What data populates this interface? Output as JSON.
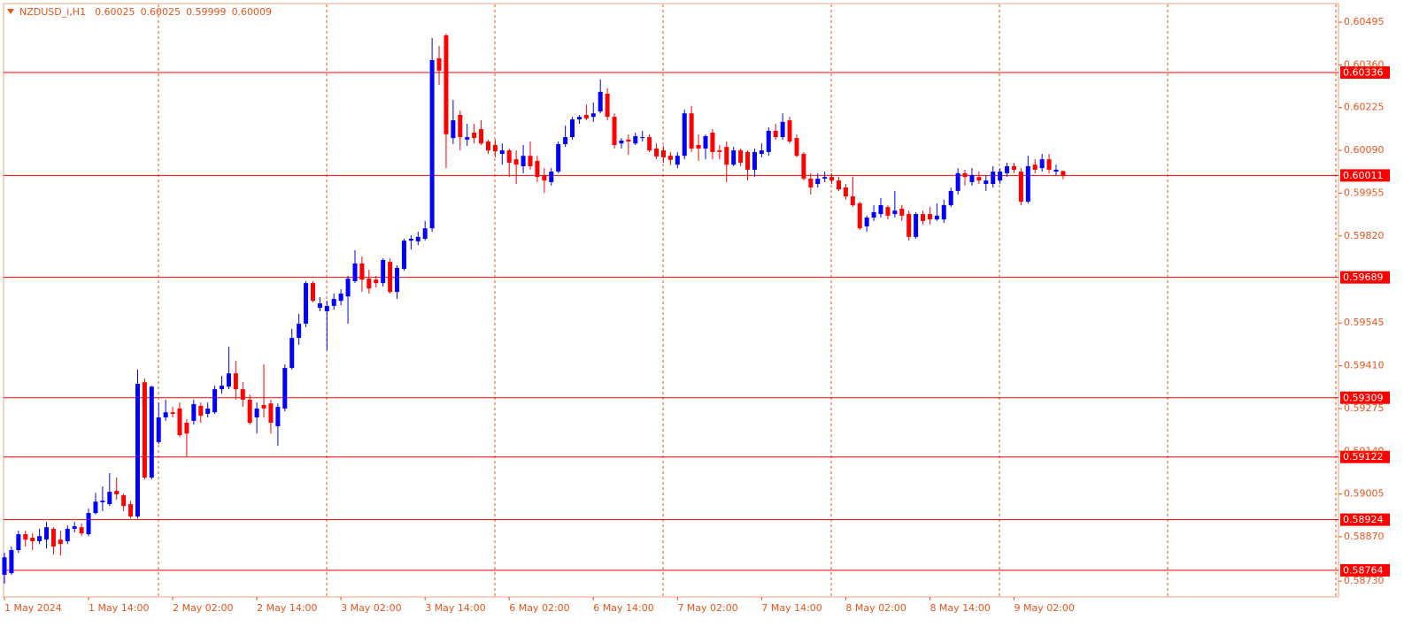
{
  "chart_data": {
    "type": "candlestick",
    "title": "NZDUSD_i,H1",
    "categories": [
      "1 May 2024",
      null,
      null,
      null,
      null,
      null,
      null,
      null,
      null,
      null,
      null,
      null,
      "1 May 14:00",
      null,
      null,
      null,
      null,
      null,
      null,
      null,
      null,
      null,
      null,
      null,
      "2 May 02:00",
      null,
      null,
      null,
      null,
      null,
      null,
      null,
      null,
      null,
      null,
      null,
      "2 May 14:00",
      null,
      null,
      null,
      null,
      null,
      null,
      null,
      null,
      null,
      null,
      null,
      "3 May 02:00",
      null,
      null,
      null,
      null,
      null,
      null,
      null,
      null,
      null,
      null,
      null,
      "3 May 14:00",
      null,
      null,
      null,
      null,
      null,
      null,
      null,
      null,
      null,
      null,
      null,
      "6 May 02:00",
      null,
      null,
      null,
      null,
      null,
      null,
      null,
      null,
      null,
      null,
      null,
      "6 May 14:00",
      null,
      null,
      null,
      null,
      null,
      null,
      null,
      null,
      null,
      null,
      null,
      "7 May 02:00",
      null,
      null,
      null,
      null,
      null,
      null,
      null,
      null,
      null,
      null,
      null,
      "7 May 14:00",
      null,
      null,
      null,
      null,
      null,
      null,
      null,
      null,
      null,
      null,
      null,
      "8 May 02:00",
      null,
      null,
      null,
      null,
      null,
      null,
      null,
      null,
      null,
      null,
      null,
      "8 May 14:00",
      null,
      null,
      null,
      null,
      null,
      null,
      null,
      null,
      null,
      null,
      null,
      "9 May 02:00",
      null,
      null,
      null,
      null,
      null,
      null,
      null
    ],
    "open": [
      0.5875,
      0.58755,
      0.58828,
      0.58878,
      0.58867,
      0.58856,
      0.58861,
      0.58895,
      0.58861,
      0.58856,
      0.58895,
      0.589,
      0.58878,
      0.58945,
      0.58979,
      0.58973,
      0.59015,
      0.59001,
      0.58973,
      0.58934,
      0.59358,
      0.59057,
      0.59169,
      0.59247,
      0.59263,
      0.59275,
      0.5923,
      0.59236,
      0.59283,
      0.59258,
      0.59263,
      0.59336,
      0.59344,
      0.59386,
      0.59336,
      0.59303,
      0.59247,
      0.59286,
      0.59291,
      0.59219,
      0.59275,
      0.59403,
      0.59498,
      0.59543,
      0.59671,
      0.59593,
      0.59582,
      0.59599,
      0.59615,
      0.59629,
      0.59677,
      0.59733,
      0.59685,
      0.59682,
      0.59671,
      0.59738,
      0.59643,
      0.59716,
      0.59805,
      0.59803,
      0.59811,
      0.59844,
      0.60381,
      0.60453,
      0.60129,
      0.60202,
      0.60124,
      0.60146,
      0.60157,
      0.60118,
      0.60107,
      0.60079,
      0.6009,
      0.60062,
      0.6004,
      0.60073,
      0.60057,
      0.60012,
      0.5999,
      0.60023,
      0.6011,
      0.60132,
      0.60188,
      0.60202,
      0.60196,
      0.60213,
      0.60269,
      0.60196,
      0.60112,
      0.60124,
      0.60112,
      0.60129,
      0.60132,
      0.60096,
      0.6009,
      0.60073,
      0.60045,
      0.60073,
      0.60207,
      0.60107,
      0.60096,
      0.60146,
      0.6009,
      0.60101,
      0.60045,
      0.6009,
      0.60085,
      0.60029,
      0.60079,
      0.60085,
      0.60152,
      0.60132,
      0.60185,
      0.60129,
      0.60079,
      0.60001,
      0.59984,
      0.60001,
      0.60006,
      0.59995,
      0.59973,
      0.59945,
      0.59923,
      0.5985,
      0.59878,
      0.59889,
      0.59911,
      0.59889,
      0.59906,
      0.59889,
      0.59817,
      0.59889,
      0.59889,
      0.59872,
      0.59872,
      0.59917,
      0.59962,
      0.60018,
      0.5999,
      0.60006,
      0.59984,
      0.59984,
      0.59995,
      0.60018,
      0.6004,
      0.60023,
      0.59928,
      0.60045,
      0.60034,
      0.60062,
      0.60023,
      0.60025
    ],
    "high": [
      0.58819,
      0.58839,
      0.58889,
      0.58889,
      0.58881,
      0.58895,
      0.58917,
      0.589,
      0.58889,
      0.58906,
      0.58917,
      0.58912,
      0.58959,
      0.59009,
      0.59029,
      0.59071,
      0.59057,
      0.59006,
      0.58984,
      0.59398,
      0.5937,
      0.59347,
      0.59294,
      0.59303,
      0.5928,
      0.59294,
      0.59241,
      0.59303,
      0.59294,
      0.59294,
      0.59347,
      0.59378,
      0.5947,
      0.59425,
      0.59358,
      0.59319,
      0.59294,
      0.59414,
      0.59303,
      0.59291,
      0.59414,
      0.59526,
      0.59574,
      0.59677,
      0.59677,
      0.59627,
      0.59615,
      0.59638,
      0.59652,
      0.59694,
      0.59775,
      0.59755,
      0.59713,
      0.59694,
      0.59749,
      0.59749,
      0.59727,
      0.59811,
      0.59822,
      0.59833,
      0.59867,
      0.60445,
      0.6042,
      0.60459,
      0.60249,
      0.60216,
      0.60174,
      0.60174,
      0.60185,
      0.60124,
      0.60124,
      0.60112,
      0.60096,
      0.6009,
      0.60107,
      0.60118,
      0.60073,
      0.60034,
      0.60034,
      0.60118,
      0.60168,
      0.60196,
      0.60202,
      0.60235,
      0.60241,
      0.60314,
      0.60286,
      0.60207,
      0.60129,
      0.60141,
      0.60146,
      0.60152,
      0.60141,
      0.60112,
      0.60104,
      0.60085,
      0.60085,
      0.60219,
      0.6023,
      0.60141,
      0.60141,
      0.60157,
      0.60107,
      0.60118,
      0.60101,
      0.60096,
      0.6009,
      0.60096,
      0.60112,
      0.60163,
      0.60174,
      0.60207,
      0.60196,
      0.60141,
      0.60085,
      0.60018,
      0.60018,
      0.60023,
      0.60018,
      0.60006,
      0.59984,
      0.60006,
      0.59928,
      0.59884,
      0.59917,
      0.59939,
      0.59917,
      0.59962,
      0.59917,
      0.599,
      0.59895,
      0.599,
      0.59911,
      0.59923,
      0.59934,
      0.59973,
      0.60034,
      0.60029,
      0.60034,
      0.60023,
      0.60012,
      0.6004,
      0.60034,
      0.60051,
      0.60051,
      0.60034,
      0.60073,
      0.60062,
      0.60079,
      0.60079,
      0.60045,
      0.60025
    ],
    "low": [
      0.58722,
      0.5875,
      0.58819,
      0.58839,
      0.58828,
      0.58847,
      0.58833,
      0.58814,
      0.58811,
      0.58847,
      0.58884,
      0.58872,
      0.58872,
      0.5894,
      0.58951,
      0.58967,
      0.58987,
      0.58951,
      0.58928,
      0.58928,
      0.59051,
      0.59051,
      0.59163,
      0.59236,
      0.59247,
      0.59185,
      0.59124,
      0.59224,
      0.5923,
      0.59247,
      0.59258,
      0.59322,
      0.59336,
      0.59303,
      0.5928,
      0.59224,
      0.59196,
      0.59247,
      0.59196,
      0.59157,
      0.59266,
      0.59398,
      0.59476,
      0.59532,
      0.5961,
      0.59582,
      0.59459,
      0.59587,
      0.59601,
      0.59543,
      0.59671,
      0.59643,
      0.59638,
      0.59657,
      0.5966,
      0.59638,
      0.59621,
      0.5971,
      0.59777,
      0.59791,
      0.59805,
      0.59833,
      0.60297,
      0.60034,
      0.6011,
      0.6009,
      0.60104,
      0.60112,
      0.60107,
      0.60079,
      0.60068,
      0.60045,
      0.60006,
      0.59984,
      0.60018,
      0.60029,
      0.5999,
      0.59956,
      0.59979,
      0.60018,
      0.60101,
      0.60124,
      0.60174,
      0.60185,
      0.6018,
      0.60207,
      0.60185,
      0.60096,
      0.60096,
      0.60076,
      0.60107,
      0.60118,
      0.60085,
      0.60062,
      0.60051,
      0.60043,
      0.60034,
      0.60062,
      0.60085,
      0.60057,
      0.60062,
      0.60062,
      0.60062,
      0.5999,
      0.6004,
      0.6004,
      0.59995,
      0.60006,
      0.60068,
      0.60073,
      0.60124,
      0.60124,
      0.60112,
      0.60068,
      0.59995,
      0.59951,
      0.59973,
      0.5999,
      0.59984,
      0.59962,
      0.59934,
      0.59911,
      0.59839,
      0.59833,
      0.59867,
      0.59878,
      0.59872,
      0.59878,
      0.59867,
      0.59805,
      0.59811,
      0.59856,
      0.59856,
      0.59867,
      0.59861,
      0.59911,
      0.59951,
      0.59979,
      0.59979,
      0.59984,
      0.59962,
      0.59973,
      0.59984,
      0.60006,
      0.60018,
      0.59917,
      0.59923,
      0.60018,
      0.60023,
      0.60018,
      0.60012,
      0.59999
    ],
    "close": [
      0.58805,
      0.58828,
      0.58878,
      0.58861,
      0.58856,
      0.58872,
      0.589,
      0.58839,
      0.58847,
      0.58895,
      0.58903,
      0.58881,
      0.58945,
      0.58981,
      0.58984,
      0.59012,
      0.59004,
      0.58967,
      0.58934,
      0.59353,
      0.59057,
      0.59344,
      0.59247,
      0.59263,
      0.59258,
      0.59191,
      0.59196,
      0.59289,
      0.59252,
      0.59275,
      0.59336,
      0.59347,
      0.59386,
      0.59336,
      0.59303,
      0.5923,
      0.59275,
      0.59275,
      0.5923,
      0.5928,
      0.59403,
      0.59498,
      0.59543,
      0.59671,
      0.59615,
      0.59607,
      0.59599,
      0.59621,
      0.59638,
      0.59685,
      0.59733,
      0.59682,
      0.59654,
      0.59671,
      0.59744,
      0.59643,
      0.59719,
      0.59805,
      0.59811,
      0.59817,
      0.59844,
      0.60375,
      0.60342,
      0.60141,
      0.60185,
      0.60132,
      0.60132,
      0.60129,
      0.60112,
      0.6009,
      0.60087,
      0.6009,
      0.60051,
      0.60045,
      0.60073,
      0.6004,
      0.60006,
      0.59995,
      0.60023,
      0.6011,
      0.60132,
      0.60188,
      0.60196,
      0.60191,
      0.60207,
      0.60275,
      0.60196,
      0.60107,
      0.60121,
      0.60118,
      0.60135,
      0.60132,
      0.6009,
      0.60071,
      0.60068,
      0.6006,
      0.60073,
      0.60207,
      0.60096,
      0.60096,
      0.60135,
      0.60085,
      0.60085,
      0.60045,
      0.6009,
      0.60051,
      0.60029,
      0.60085,
      0.6009,
      0.60152,
      0.60132,
      0.6018,
      0.60118,
      0.60073,
      0.60001,
      0.59973,
      0.60001,
      0.60006,
      0.59995,
      0.59967,
      0.59945,
      0.59917,
      0.59844,
      0.59878,
      0.59895,
      0.59917,
      0.59884,
      0.599,
      0.59884,
      0.59817,
      0.59889,
      0.59867,
      0.59872,
      0.59884,
      0.59917,
      0.59962,
      0.60018,
      0.60006,
      0.60012,
      0.59995,
      0.59995,
      0.60023,
      0.60023,
      0.6004,
      0.60029,
      0.59928,
      0.6004,
      0.60029,
      0.60062,
      0.60029,
      0.60029,
      0.60009
    ],
    "up_color": "#0000ff",
    "down_color": "#ff0000",
    "ylim": [
      0.5868,
      0.60551
    ],
    "yticks": [
      0.60495,
      {
        "value": 0.6036,
        "label": "0.60360"
      },
      0.60225,
      {
        "value": 0.6009,
        "label": "0.60090"
      },
      0.59955,
      {
        "value": 0.5982,
        "label": "0.59820"
      },
      0.59545,
      {
        "value": 0.5941,
        "label": "0.59410"
      },
      0.59275,
      {
        "value": 0.5914,
        "label": "0.59140"
      },
      0.59005,
      {
        "value": 0.5887,
        "label": "0.58870"
      },
      {
        "value": 0.5873,
        "label": "0.58730"
      }
    ],
    "levels": [
      0.60336,
      0.60011,
      0.59689,
      0.59309,
      0.59122,
      0.58924,
      0.58764
    ],
    "level_color": "#ff0000"
  }
}
